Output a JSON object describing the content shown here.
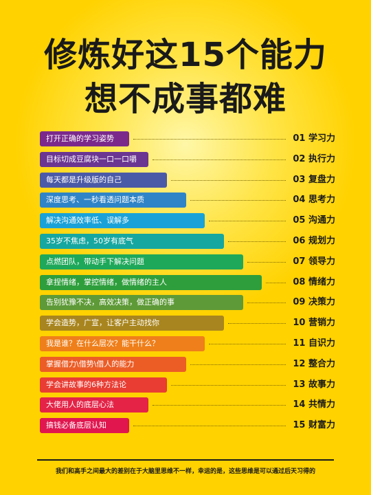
{
  "title": {
    "line1": "修炼好这15个能力",
    "line2": "想不成事都难"
  },
  "items": [
    {
      "text": "打开正确的学习姿势",
      "label": "01 学习力",
      "color": "#7b2a8c",
      "level": 1
    },
    {
      "text": "目标切成豆腐块一口一口嚼",
      "label": "02 执行力",
      "color": "#6b3592",
      "level": 2
    },
    {
      "text": "每天都是升级版的自己",
      "label": "03 复盘力",
      "color": "#4b5aa6",
      "level": 3
    },
    {
      "text": "深度思考、一秒看透问题本质",
      "label": "04 思考力",
      "color": "#2f84c7",
      "level": 4
    },
    {
      "text": "解决沟通效率低、误解多",
      "label": "05 沟通力",
      "color": "#1aa2d8",
      "level": 5
    },
    {
      "text": "35岁不焦虑，50岁有底气",
      "label": "06 规划力",
      "color": "#16a7a0",
      "level": 6
    },
    {
      "text": "点燃团队，带动手下解决问题",
      "label": "07 领导力",
      "color": "#1ea85a",
      "level": 7
    },
    {
      "text": "拿捏情绪，掌控情绪，做情绪的主人",
      "label": "08 情绪力",
      "color": "#2e9e3c",
      "level": 8
    },
    {
      "text": "告别犹豫不决，高效决策，做正确的事",
      "label": "09 决策力",
      "color": "#5e9a37",
      "level": 7
    },
    {
      "text": "学会造势，广宣，让客户主动找你",
      "label": "10 营销力",
      "color": "#a8851e",
      "level": 6
    },
    {
      "text": "我是谁？在什么层次？能干什么？",
      "label": "11 自识力",
      "color": "#ef7f1a",
      "level": 5
    },
    {
      "text": "掌握借力\\借势\\借人的能力",
      "label": "12 整合力",
      "color": "#ec5d26",
      "level": 4
    },
    {
      "text": "学会讲故事的6种方法论",
      "label": "13 故事力",
      "color": "#e93c33",
      "level": 3
    },
    {
      "text": "大佬用人的底层心法",
      "label": "14 共情力",
      "color": "#e42347",
      "level": 2
    },
    {
      "text": "搞钱必备底层认知",
      "label": "15 财富力",
      "color": "#e1164f",
      "level": 1
    }
  ],
  "footer": "我们和高手之间最大的差别在于大脑里思维不一样，幸运的是，这些思维是可以通过后天习得的"
}
